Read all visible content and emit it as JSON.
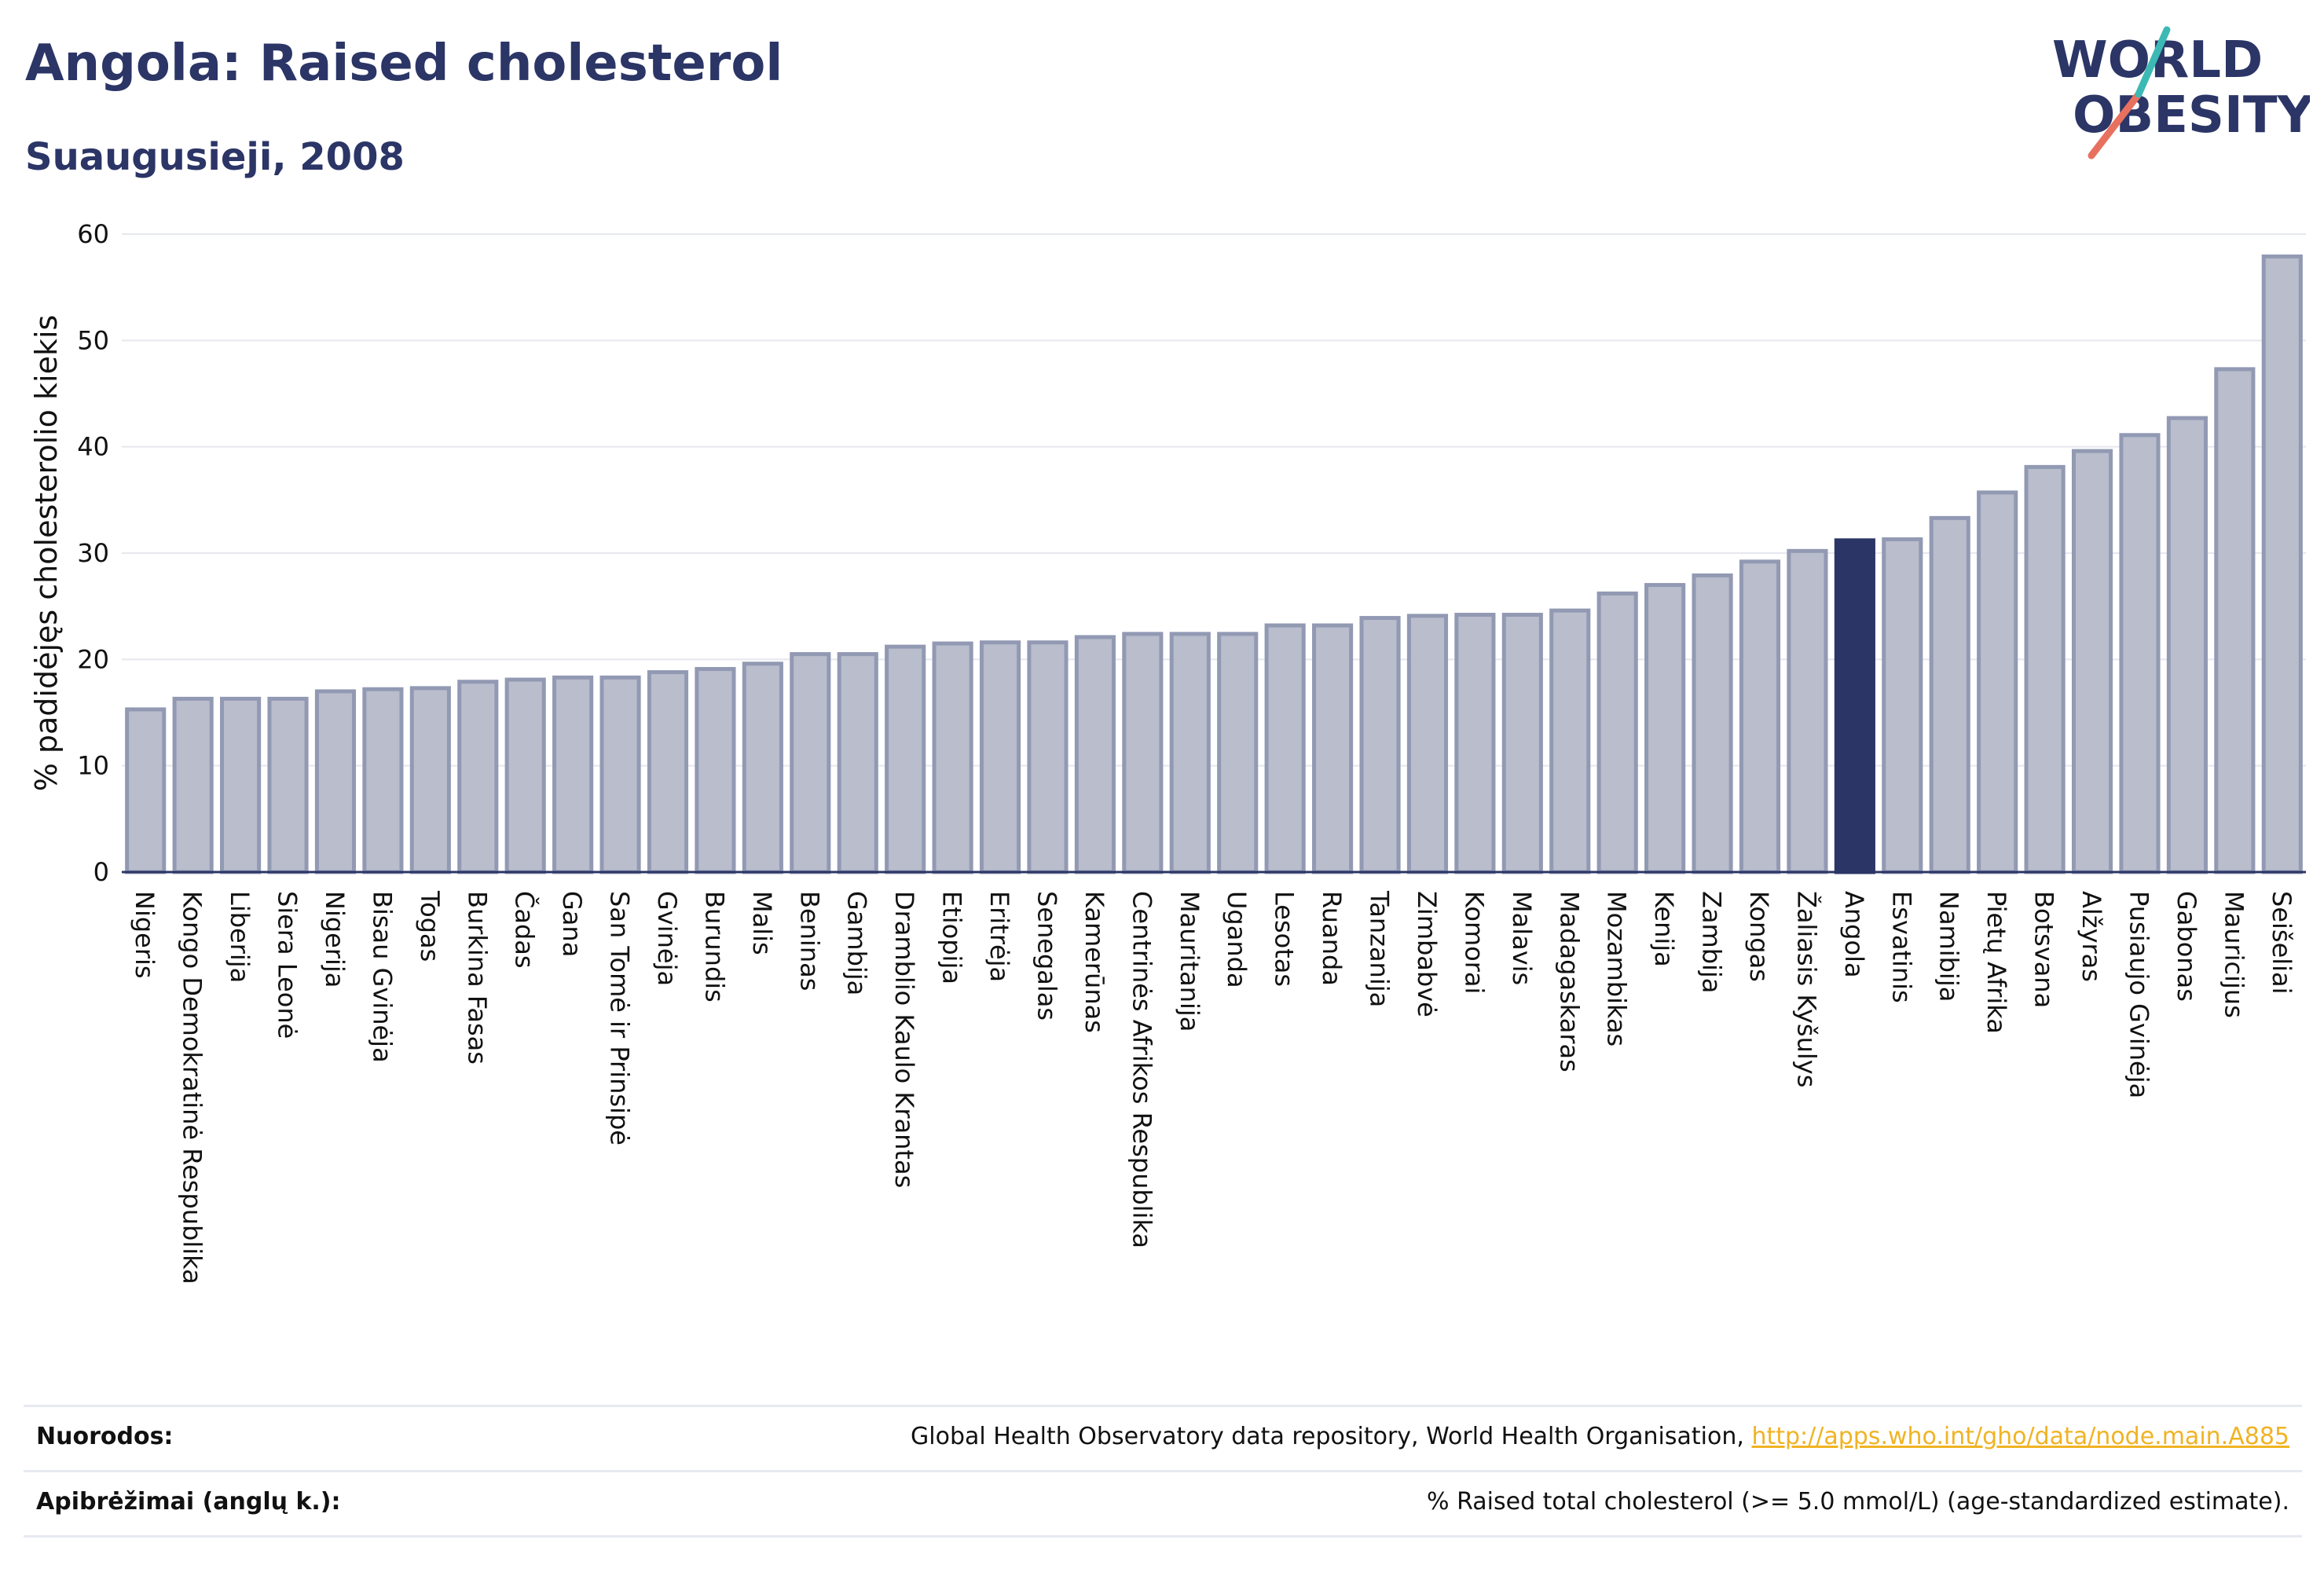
{
  "header": {
    "title": "Angola: Raised cholesterol",
    "subtitle": "Suaugusieji, 2008"
  },
  "logo": {
    "line1": "WORLD",
    "line2": "OBESITY"
  },
  "colors": {
    "bar": "#b9bdcc",
    "bar_stroke": "#9299b3",
    "highlight": "#2b3566",
    "title": "#2b3566",
    "link": "#f0b323"
  },
  "chart_data": {
    "type": "bar",
    "title": "Angola: Raised cholesterol",
    "subtitle": "Suaugusieji, 2008",
    "ylabel": "% padidėjęs cholesterolio kiekis",
    "xlabel": "",
    "ylim": [
      0,
      60
    ],
    "yticks": [
      0,
      10,
      20,
      30,
      40,
      50,
      60
    ],
    "grid": true,
    "highlight": "Angola",
    "categories": [
      "Nigeris",
      "Kongo Demokratinė Respublika",
      "Liberija",
      "Siera Leonė",
      "Nigerija",
      "Bisau Gvinėja",
      "Togas",
      "Burkina Fasas",
      "Čadas",
      "Gana",
      "San Tomė ir Prinsipė",
      "Gvinėja",
      "Burundis",
      "Malis",
      "Beninas",
      "Gambija",
      "Dramblio Kaulo Krantas",
      "Etiopija",
      "Eritrėja",
      "Senegalas",
      "Kamerūnas",
      "Centrinės Afrikos Respublika",
      "Mauritanija",
      "Uganda",
      "Lesotas",
      "Ruanda",
      "Tanzanija",
      "Zimbabvė",
      "Komorai",
      "Malavis",
      "Madagaskaras",
      "Mozambikas",
      "Kenija",
      "Zambija",
      "Kongas",
      "Žaliasis Kyšulys",
      "Angola",
      "Esvatinis",
      "Namibija",
      "Pietų Afrika",
      "Botsvana",
      "Alžyras",
      "Pusiaujo Gvinėja",
      "Gabonas",
      "Mauricijus",
      "Seišeliai"
    ],
    "values": [
      15.3,
      16.3,
      16.3,
      16.3,
      17.0,
      17.2,
      17.3,
      17.9,
      18.1,
      18.3,
      18.3,
      18.8,
      19.1,
      19.6,
      20.5,
      20.5,
      21.2,
      21.5,
      21.6,
      21.6,
      22.1,
      22.4,
      22.4,
      22.4,
      23.2,
      23.2,
      23.9,
      24.1,
      24.2,
      24.2,
      24.6,
      26.2,
      27.0,
      27.9,
      29.2,
      30.2,
      31.2,
      31.3,
      33.3,
      35.7,
      38.1,
      39.6,
      41.1,
      42.7,
      47.3,
      57.9
    ]
  },
  "footer": {
    "sources_label": "Nuorodos:",
    "sources_text": "Global Health Observatory data repository, World Health Organisation, ",
    "sources_link": "http://apps.who.int/gho/data/node.main.A885",
    "definitions_label": "Apibrėžimai (anglų k.):",
    "definitions_text": "% Raised total cholesterol (>= 5.0 mmol/L) (age-standardized estimate)."
  }
}
